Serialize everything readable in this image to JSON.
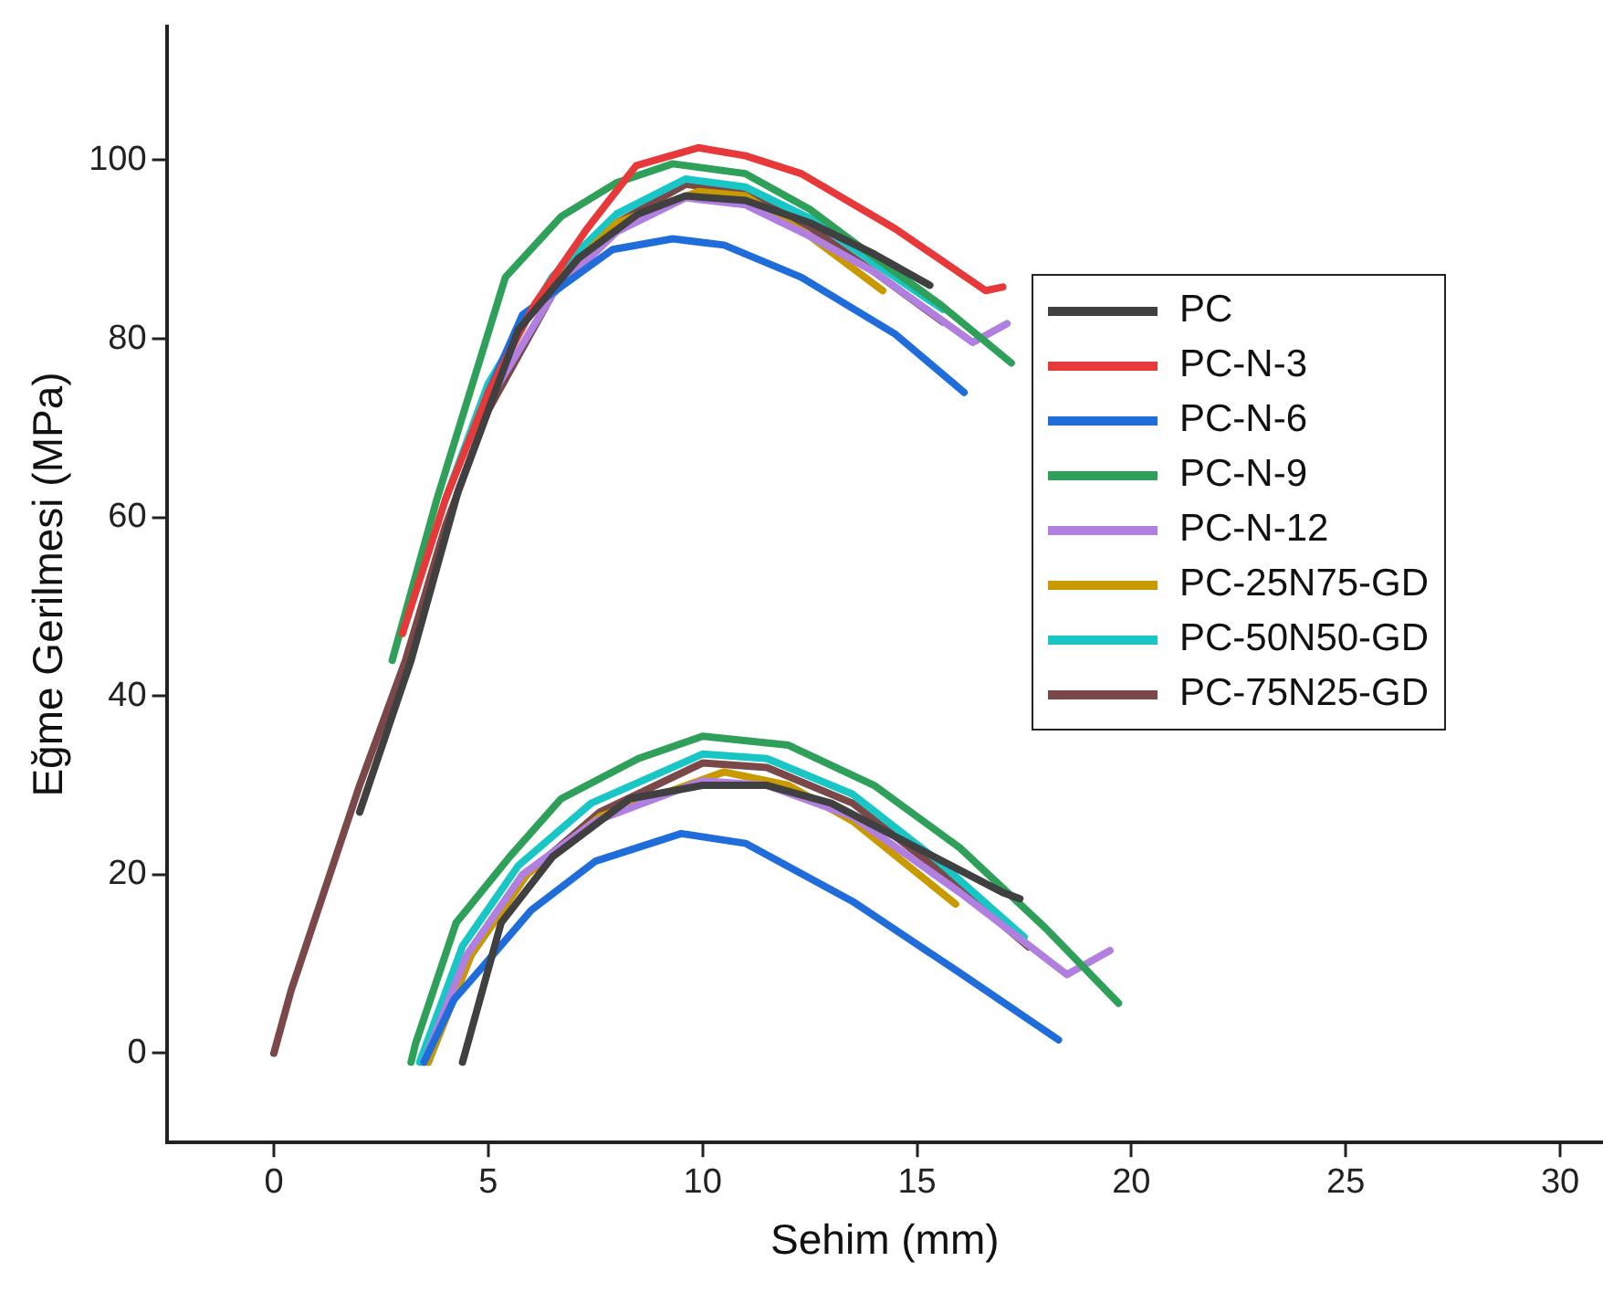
{
  "chart_data": {
    "type": "line",
    "xlabel": "Sehim (mm)",
    "ylabel": "Eğme Gerilmesi (MPa)",
    "xlim": [
      -2.5,
      31
    ],
    "ylim": [
      -10,
      115
    ],
    "xticks": [
      0,
      5,
      10,
      15,
      20,
      25,
      30
    ],
    "yticks": [
      0,
      20,
      40,
      60,
      80,
      100
    ],
    "grid": false,
    "legend": "right",
    "marker": "none",
    "line_style": "solid",
    "series": [
      {
        "name": "PC",
        "color": "#404040",
        "x": [
          2,
          3.2,
          4.3,
          5.7,
          7.1,
          8.5,
          9.6,
          11,
          12.5,
          14,
          15.3,
          null,
          4.4,
          5.3,
          6.5,
          8.3,
          10,
          11.5,
          13,
          15,
          17,
          17.4
        ],
        "values": [
          27,
          44,
          63,
          81,
          89,
          94,
          96,
          95.5,
          93,
          89.5,
          86,
          null,
          -1,
          14.6,
          22,
          28.5,
          30,
          30,
          28,
          23,
          18,
          17.3
        ]
      },
      {
        "name": "PC-N-3",
        "color": "#e8393a",
        "x": [
          3,
          4,
          5,
          6.1,
          7.3,
          8.45,
          9.9,
          11,
          12.3,
          14.5,
          16.6,
          17
        ],
        "values": [
          47,
          62,
          74,
          84,
          92.3,
          99.4,
          101.4,
          100.5,
          98.5,
          92.3,
          85.4,
          85.8
        ]
      },
      {
        "name": "PC-N-6",
        "color": "#1f6ddb",
        "x": [
          5,
          5.8,
          6.4,
          7.9,
          9.3,
          10.5,
          12.3,
          14.5,
          16.1,
          null,
          3.5,
          4.2,
          5,
          6,
          7.5,
          9.5,
          11,
          13.5,
          16,
          18.3
        ],
        "values": [
          74,
          82.7,
          84.8,
          90,
          91.2,
          90.5,
          86.9,
          80.5,
          74,
          null,
          -1,
          6,
          10.4,
          16,
          21.5,
          24.6,
          23.5,
          17,
          9,
          1.5
        ]
      },
      {
        "name": "PC-N-9",
        "color": "#2fa05a",
        "x": [
          2.76,
          3.8,
          5.4,
          6.7,
          8,
          9.3,
          11,
          12.5,
          13.7,
          15.5,
          17.2,
          null,
          3.2,
          3.3,
          4.25,
          5.5,
          6.7,
          8.5,
          10,
          12,
          14,
          16,
          18,
          19.7
        ],
        "values": [
          44,
          62,
          86.9,
          93.7,
          97.5,
          99.6,
          98.5,
          94.5,
          90.2,
          84,
          77.3,
          null,
          -1,
          1,
          14.6,
          22,
          28.5,
          33,
          35.5,
          34.5,
          30,
          23,
          14,
          5.6
        ]
      },
      {
        "name": "PC-N-12",
        "color": "#b07fe0",
        "x": [
          5,
          6.5,
          8,
          9.6,
          11,
          12.5,
          14,
          16.3,
          17.1,
          null,
          3.5,
          4.5,
          5.8,
          7.5,
          10,
          11.5,
          13.5,
          16,
          18.5,
          19.5
        ],
        "values": [
          73,
          85,
          92,
          95.8,
          95,
          91.5,
          87.5,
          79.6,
          81.7,
          null,
          -1,
          11,
          20,
          26,
          30.5,
          30,
          26.5,
          18,
          8.8,
          11.5
        ]
      },
      {
        "name": "PC-25N75-GD",
        "color": "#c89a00",
        "x": [
          6.5,
          8,
          9.9,
          11,
          12.5,
          14.2,
          null,
          3.6,
          4.6,
          5.9,
          7.6,
          10.5,
          12,
          13.5,
          15.9
        ],
        "values": [
          86,
          93,
          96.5,
          96,
          91.5,
          85.4,
          null,
          -1,
          11,
          20,
          26.5,
          31.5,
          30,
          26,
          16.7
        ]
      },
      {
        "name": "PC-50N50-GD",
        "color": "#19c6c6",
        "x": [
          4,
          5,
          6.5,
          8,
          9.6,
          11,
          12.5,
          14,
          15.6,
          null,
          3.4,
          4.4,
          5.7,
          7.4,
          10,
          11.5,
          13.5,
          15.5,
          17.5
        ],
        "values": [
          62,
          75,
          87,
          94,
          97.9,
          97,
          93.5,
          88.5,
          83.3,
          null,
          -1,
          12,
          21,
          28,
          33.5,
          33,
          29,
          21.5,
          13
        ]
      },
      {
        "name": "PC-75N25-GD",
        "color": "#7a4848",
        "x": [
          0,
          0.4,
          2,
          3.07,
          4,
          5,
          6.5,
          8,
          9.6,
          11,
          12.5,
          14,
          15.6,
          null,
          3.6,
          4.6,
          5.9,
          7.6,
          10,
          11.5,
          13.5,
          15.5,
          17.6
        ],
        "values": [
          0,
          7,
          30,
          44,
          59,
          72,
          85,
          93,
          97.3,
          96.5,
          92.5,
          87.5,
          81.9,
          null,
          -1,
          11,
          20,
          27,
          32.5,
          32,
          28,
          20.5,
          11.9
        ]
      }
    ]
  }
}
